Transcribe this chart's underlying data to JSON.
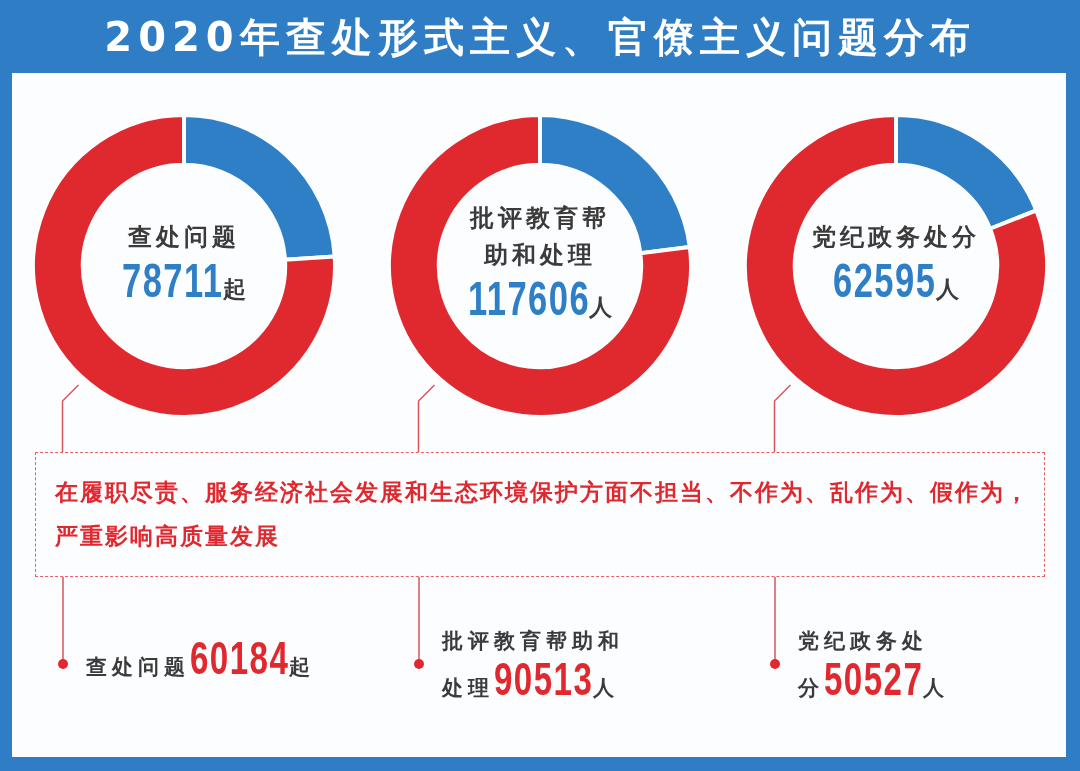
{
  "chart_data": [
    {
      "type": "other",
      "title": "2020年查处形式主义、官僚主义问题分布",
      "annotations": [
        "在履职尽责、服务经济社会发展和生态环境保护方面不担当、不作为、乱作为、假作为，严重影响高质量发展"
      ]
    },
    {
      "type": "donut",
      "title": "查处问题",
      "subtitle": "78711起",
      "values": [
        24,
        76
      ],
      "colors": [
        "#2f7fc6",
        "#e0292f"
      ],
      "annotations": [
        "查处问题60184起"
      ]
    },
    {
      "type": "donut",
      "title": "批评教育帮助和处理",
      "subtitle": "117606人",
      "values": [
        23,
        77
      ],
      "colors": [
        "#2f7fc6",
        "#e0292f"
      ],
      "annotations": [
        "批评教育帮助和处理90513人"
      ]
    },
    {
      "type": "donut",
      "title": "党纪政务处分",
      "subtitle": "62595人",
      "values": [
        19,
        81
      ],
      "colors": [
        "#2f7fc6",
        "#e0292f"
      ],
      "annotations": [
        "党纪政务处分50527人"
      ]
    }
  ]
}
